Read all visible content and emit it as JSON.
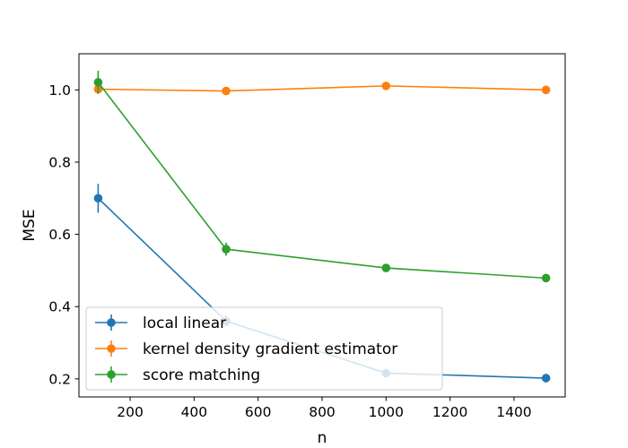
{
  "chart_data": {
    "type": "line",
    "xlabel": "n",
    "ylabel": "MSE",
    "xlim": [
      40,
      1560
    ],
    "ylim": [
      0.15,
      1.1
    ],
    "xticks": [
      200,
      400,
      600,
      800,
      1000,
      1200,
      1400
    ],
    "xtick_labels": [
      "200",
      "400",
      "600",
      "800",
      "1000",
      "1200",
      "1400"
    ],
    "yticks": [
      0.2,
      0.4,
      0.6,
      0.8,
      1.0
    ],
    "ytick_labels": [
      "0.2",
      "0.4",
      "0.6",
      "0.8",
      "1.0"
    ],
    "grid": false,
    "legend_position": "lower-left",
    "x": [
      100,
      500,
      1000,
      1500
    ],
    "series": [
      {
        "name": "local linear",
        "color": "#1f77b4",
        "values": [
          0.7,
          0.36,
          0.216,
          0.202
        ],
        "errors": [
          0.04,
          0.015,
          0.01,
          0.012
        ]
      },
      {
        "name": "kernel density gradient estimator",
        "color": "#ff7f0e",
        "values": [
          1.002,
          0.997,
          1.011,
          1.0
        ],
        "errors": [
          0.006,
          0.006,
          0.006,
          0.006
        ]
      },
      {
        "name": "score matching",
        "color": "#2ca02c",
        "values": [
          1.021,
          0.559,
          0.507,
          0.479
        ],
        "errors": [
          0.032,
          0.018,
          0.01,
          0.01
        ]
      }
    ]
  }
}
